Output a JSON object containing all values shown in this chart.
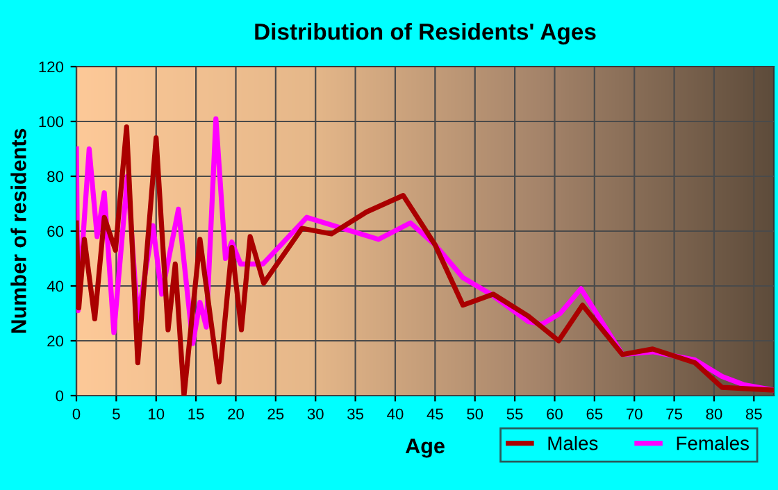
{
  "chart_data": {
    "type": "line",
    "title": "Distribution of Residents' Ages",
    "xlabel": "Age",
    "ylabel": "Number of residents",
    "xlim": [
      0,
      87.5
    ],
    "xticks": [
      0,
      5,
      10,
      15,
      20,
      25,
      30,
      35,
      40,
      45,
      50,
      55,
      60,
      65,
      70,
      75,
      80,
      85
    ],
    "ylim": [
      0,
      120
    ],
    "yticks": [
      0,
      20,
      40,
      60,
      80,
      100,
      120
    ],
    "grid": true,
    "legend": "bottom right",
    "marker": "none",
    "line_style": "solid",
    "series": [
      {
        "name": "Males",
        "color": "#aa0000",
        "x": [
          0,
          0.3,
          1,
          2.3,
          3.5,
          4.9,
          6.3,
          7.7,
          10,
          11.5,
          12.4,
          13.5,
          15.5,
          17.9,
          19.5,
          20.7,
          21.8,
          23.5,
          28.3,
          32,
          36.4,
          41,
          45,
          48.5,
          52.3,
          56.7,
          60.5,
          63.5,
          68.5,
          72.3,
          77.6,
          81,
          87.5
        ],
        "values": [
          63,
          32,
          57,
          28,
          65,
          53,
          98,
          12,
          94,
          24,
          48,
          0,
          57,
          5,
          54,
          24,
          58,
          41,
          61,
          59,
          67,
          73,
          55,
          33,
          37,
          29,
          20,
          33,
          15,
          17,
          12,
          3,
          2
        ]
      },
      {
        "name": "Females",
        "color": "#ff00ff",
        "x": [
          0,
          0.2,
          1.6,
          2.6,
          3.5,
          4.7,
          6.4,
          7.7,
          9.6,
          10.7,
          12.8,
          14.6,
          15.5,
          16.3,
          17.5,
          18.7,
          19.5,
          20.6,
          23.4,
          28.9,
          37.9,
          41.9,
          45,
          48.5,
          52,
          56.7,
          58.4,
          60.7,
          63.3,
          68.5,
          72.3,
          77.6,
          81,
          83.7,
          87.5
        ],
        "values": [
          90,
          31,
          90,
          58,
          74,
          23,
          80,
          28,
          62,
          37,
          68,
          19,
          34,
          25,
          101,
          50,
          56,
          48,
          48,
          65,
          57,
          63,
          55,
          43,
          37,
          27,
          26,
          30,
          39,
          15,
          16,
          13,
          7,
          4,
          2
        ]
      }
    ]
  }
}
